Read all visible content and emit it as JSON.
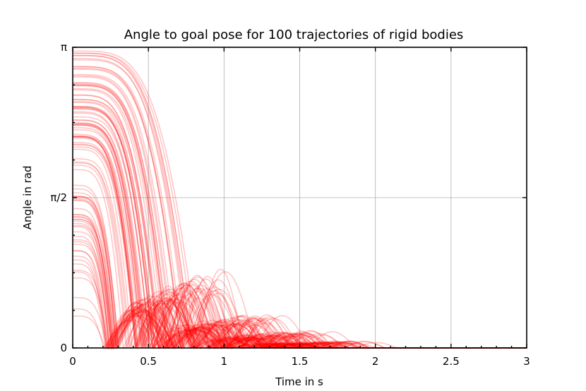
{
  "chart_data": {
    "type": "line",
    "title": "Angle to goal pose for 100 trajectories of rigid bodies",
    "xlabel": "Time in s",
    "ylabel": "Angle in rad",
    "xlim": [
      0,
      3
    ],
    "ylim": [
      0,
      3.14159
    ],
    "x_ticks": [
      0,
      0.5,
      1,
      1.5,
      2,
      2.5,
      3
    ],
    "x_tick_labels": [
      "0",
      "0.5",
      "1",
      "1.5",
      "2",
      "2.5",
      "3"
    ],
    "y_ticks": [
      0,
      1.5708,
      3.14159
    ],
    "y_tick_labels": [
      "0",
      "π/2",
      "π"
    ],
    "grid": true,
    "line_color": "#ff0000",
    "series_count": 100,
    "trajectory_model": {
      "description_values": "each trajectory starts at an initial angle in [0, π], falls to 0, then bounces with decaying amplitude",
      "first_zero_time": 0.2,
      "first_bounce_peak_max": 0.85,
      "second_bounce_peak_max": 0.4,
      "third_bounce_peak_max": 0.2,
      "fourth_bounce_peak_max": 0.08
    }
  }
}
